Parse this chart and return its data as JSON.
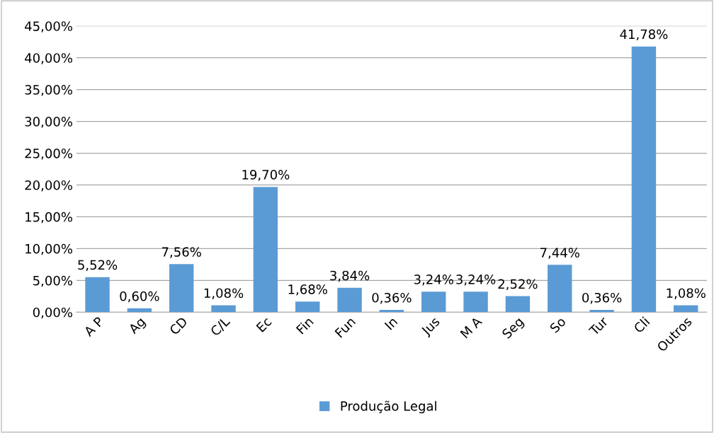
{
  "chart_data": {
    "type": "bar",
    "categories": [
      "A P",
      "Ag",
      "CD",
      "C/L",
      "Ec",
      "Fin",
      "Fun",
      "In",
      "Jus",
      "M A",
      "Seg",
      "So",
      "Tur",
      "Cli",
      "Outros"
    ],
    "series": [
      {
        "name": "Produção Legal",
        "color": "#5b9bd5",
        "values": [
          5.52,
          0.6,
          7.56,
          1.08,
          19.7,
          1.68,
          3.84,
          0.36,
          3.24,
          3.24,
          2.52,
          7.44,
          0.36,
          41.78,
          1.08
        ],
        "value_labels": [
          "5,52%",
          "0,60%",
          "7,56%",
          "1,08%",
          "19,70%",
          "1,68%",
          "3,84%",
          "0,36%",
          "3,24%",
          "3,24%",
          "2,52%",
          "7,44%",
          "0,36%",
          "41,78%",
          "1,08%"
        ]
      }
    ],
    "ylim": [
      0,
      45
    ],
    "yticks": [
      {
        "value": 0,
        "label": "0,00%"
      },
      {
        "value": 5,
        "label": "5,00%"
      },
      {
        "value": 10,
        "label": "10,00%"
      },
      {
        "value": 15,
        "label": "15,00%"
      },
      {
        "value": 20,
        "label": "20,00%"
      },
      {
        "value": 25,
        "label": "25,00%"
      },
      {
        "value": 30,
        "label": "30,00%"
      },
      {
        "value": 35,
        "label": "35,00%"
      },
      {
        "value": 40,
        "label": "40,00%"
      },
      {
        "value": 45,
        "label": "45,00%"
      }
    ],
    "grid": "y",
    "legend": "bottom"
  }
}
